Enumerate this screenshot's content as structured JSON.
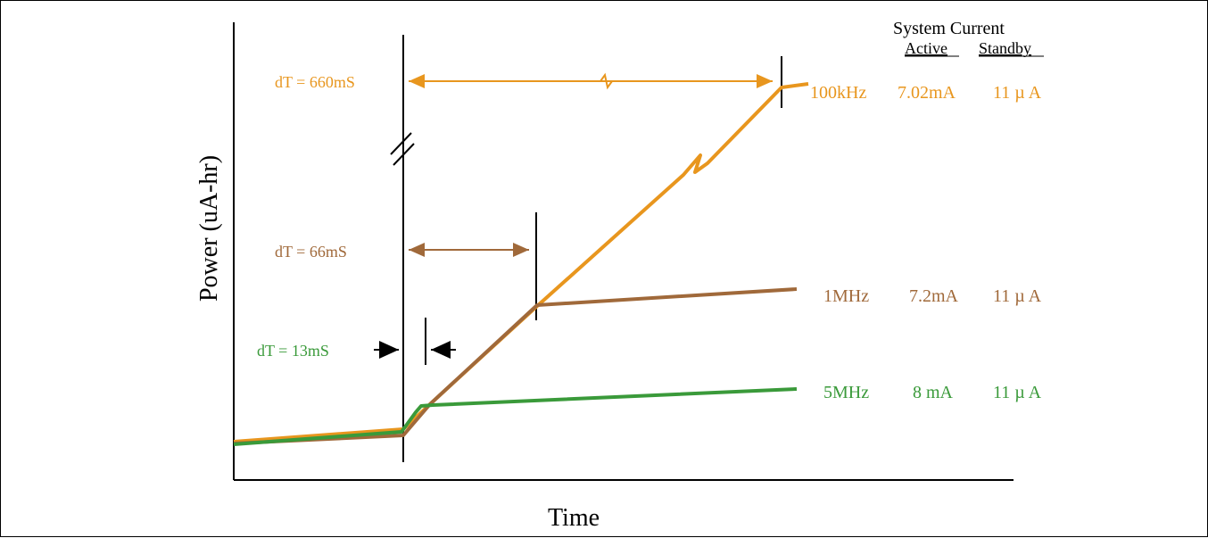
{
  "axes": {
    "y_label": "Power (uA-hr)",
    "x_label": "Time"
  },
  "header": {
    "title": "System Current",
    "col_active": "Active",
    "col_standby": "Standby"
  },
  "colors": {
    "orange": "#E8961E",
    "brown": "#A0693A",
    "green": "#3A9A3A",
    "black": "#000000"
  },
  "annotations": {
    "dt_100khz": "dT = 660mS",
    "dt_1mhz": "dT = 66mS",
    "dt_5mhz": "dT = 13mS"
  },
  "series": [
    {
      "name": "100kHz",
      "active": "7.02mA",
      "standby": "11 µ A",
      "color": "#E8961E"
    },
    {
      "name": "1MHz",
      "active": "7.2mA",
      "standby": "11 µ A",
      "color": "#A0693A"
    },
    {
      "name": "5MHz",
      "active": "8 mA",
      "standby": "11 µ A",
      "color": "#3A9A3A"
    }
  ]
}
